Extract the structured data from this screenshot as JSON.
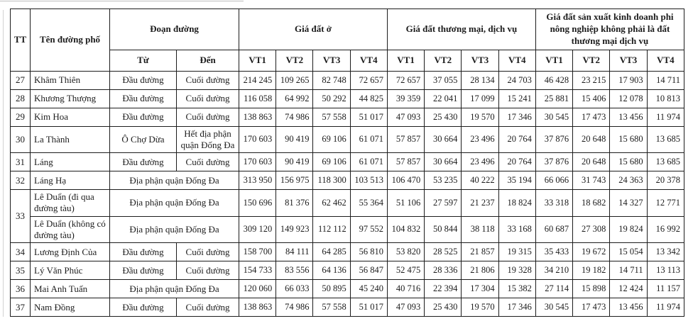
{
  "table": {
    "header": {
      "tt": "TT",
      "street_name": "Tên đường phố",
      "segment": "Đoạn đường",
      "from": "Từ",
      "to": "Đến",
      "group_residential": "Giá đất ở",
      "group_commercial": "Giá đất thương mại, dịch vụ",
      "group_non_agri": "Giá đất sản xuất kinh doanh phi nông nghiệp không phải là đất thương mại dịch vụ",
      "position_labels": [
        "VT1",
        "VT2",
        "VT3",
        "VT4"
      ]
    },
    "rows": [
      {
        "tt": "27",
        "name": "Khâm Thiên",
        "from": "Đầu đường",
        "to": "Cuối đường",
        "values": [
          "214 245",
          "109 265",
          "82 748",
          "72 657",
          "72 657",
          "37 055",
          "28 134",
          "24 703",
          "46 428",
          "23 215",
          "17 903",
          "14 711"
        ]
      },
      {
        "tt": "28",
        "name": "Khương Thượng",
        "from": "Đầu đường",
        "to": "Cuối đường",
        "values": [
          "116 058",
          "64 992",
          "50 292",
          "44 825",
          "39 359",
          "22 041",
          "17 099",
          "15 241",
          "25 881",
          "15 406",
          "12 078",
          "10 813"
        ]
      },
      {
        "tt": "29",
        "name": "Kim Hoa",
        "from": "Đầu đường",
        "to": "Cuối đường",
        "values": [
          "138 863",
          "74 986",
          "57 558",
          "51 017",
          "47 093",
          "25 430",
          "19 570",
          "17 346",
          "30 545",
          "17 473",
          "13 456",
          "11 974"
        ]
      },
      {
        "tt": "30",
        "name": "La Thành",
        "from": "Ô Chợ Dừa",
        "to": "Hết địa phận quận Đống Đa",
        "values": [
          "170 603",
          "90 419",
          "69 106",
          "61 071",
          "57 857",
          "30 664",
          "23 496",
          "20 764",
          "37 876",
          "20 648",
          "15 680",
          "13 685"
        ]
      },
      {
        "tt": "31",
        "name": "Láng",
        "from": "Đầu đường",
        "to": "Cuối đường",
        "values": [
          "170 603",
          "90 419",
          "69 106",
          "61 071",
          "57 857",
          "30 664",
          "23 496",
          "20 764",
          "37 876",
          "20 648",
          "15 680",
          "13 685"
        ]
      },
      {
        "tt": "32",
        "name": "Láng Hạ",
        "segment": "Địa phận quận Đống Đa",
        "values": [
          "313 950",
          "156 975",
          "118 300",
          "103 513",
          "106 470",
          "53 235",
          "40 222",
          "35 194",
          "66 066",
          "31 743",
          "24 363",
          "20 378"
        ]
      },
      {
        "tt": "33",
        "tt_rowspan": 2,
        "name": "Lê Duẩn (đi qua đường tàu)",
        "segment": "Địa phận quận Đống Đa",
        "values": [
          "150 696",
          "81 376",
          "62 462",
          "55 364",
          "51 106",
          "27 597",
          "21 237",
          "18 824",
          "33 318",
          "18 682",
          "14 327",
          "12 771"
        ]
      },
      {
        "name": "Lê Duẩn (không có đường tàu)",
        "segment": "Địa phận quận Đống Đa",
        "values": [
          "309 120",
          "149 923",
          "112 112",
          "97 552",
          "104 832",
          "50 844",
          "38 118",
          "33 168",
          "60 687",
          "27 308",
          "19 824",
          "16 992"
        ]
      },
      {
        "tt": "34",
        "name": "Lương Định Của",
        "from": "Đầu đường",
        "to": "Cuối đường",
        "values": [
          "158 700",
          "84 111",
          "64 285",
          "56 810",
          "53 820",
          "28 525",
          "21 857",
          "19 315",
          "35 433",
          "19 672",
          "15 054",
          "13 342"
        ]
      },
      {
        "tt": "35",
        "name": "Lý Văn Phúc",
        "from": "Đầu đường",
        "to": "Cuối đường",
        "values": [
          "154 733",
          "83 556",
          "64 136",
          "56 847",
          "52 475",
          "28 336",
          "21 806",
          "19 328",
          "34 210",
          "19 182",
          "14 711",
          "13 113"
        ]
      },
      {
        "tt": "36",
        "name": "Mai Anh Tuấn",
        "segment": "Địa phận quận Đống Đa",
        "values": [
          "120 060",
          "66 033",
          "50 895",
          "45 240",
          "40 716",
          "22 394",
          "17 304",
          "15 382",
          "27 114",
          "15 898",
          "12 424",
          "11 157"
        ]
      },
      {
        "tt": "37",
        "name": "Nam Đồng",
        "from": "Đầu đường",
        "to": "Cuối đường",
        "values": [
          "138 863",
          "74 986",
          "57 558",
          "51 017",
          "47 093",
          "25 430",
          "19 570",
          "17 346",
          "30 545",
          "17 473",
          "13 456",
          "11 974"
        ]
      }
    ]
  }
}
